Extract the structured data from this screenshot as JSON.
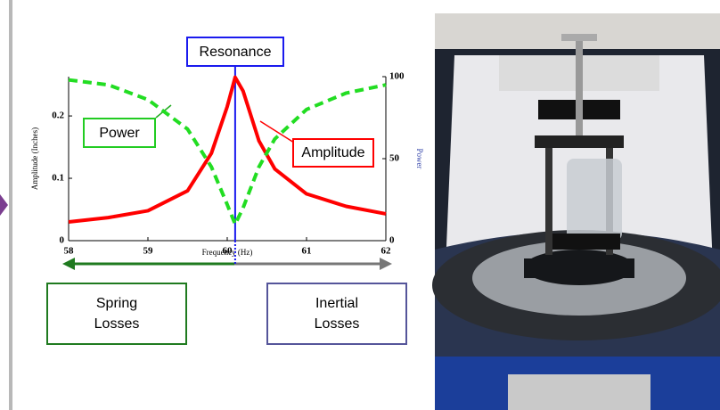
{
  "chart_data": {
    "type": "line",
    "annotations": [
      "Resonance",
      "Power",
      "Amplitude"
    ],
    "box_labels": [
      "Spring Losses",
      "Inertial Losses"
    ],
    "ylabel": "Amplitude (Inches)",
    "y2label": "Power",
    "xlabel": "Frequency (Hz)",
    "x": [
      58,
      58.5,
      59,
      59.5,
      59.8,
      60,
      60.1,
      60.2,
      60.4,
      60.6,
      61,
      61.5,
      62
    ],
    "series": [
      {
        "name": "Amplitude",
        "color": "#ff0000",
        "line_style": "solid",
        "values": [
          0.03,
          0.037,
          0.048,
          0.08,
          0.14,
          0.215,
          0.262,
          0.24,
          0.16,
          0.115,
          0.075,
          0.055,
          0.043
        ]
      },
      {
        "name": "Power",
        "color": "#22dd22",
        "line_style": "dashed",
        "axis": "y2",
        "values": [
          98,
          95,
          86,
          68,
          45,
          22,
          10,
          20,
          45,
          62,
          80,
          90,
          95
        ]
      }
    ],
    "resonance_x": 60.1,
    "xlim": [
      58,
      62
    ],
    "xticks": [
      58,
      59,
      60,
      61,
      62
    ],
    "ylim": [
      0,
      0.263
    ],
    "yticks": [
      0,
      0.1,
      0.2
    ],
    "y2lim": [
      0,
      100
    ],
    "y2ticks": [
      0,
      50,
      100
    ]
  }
}
